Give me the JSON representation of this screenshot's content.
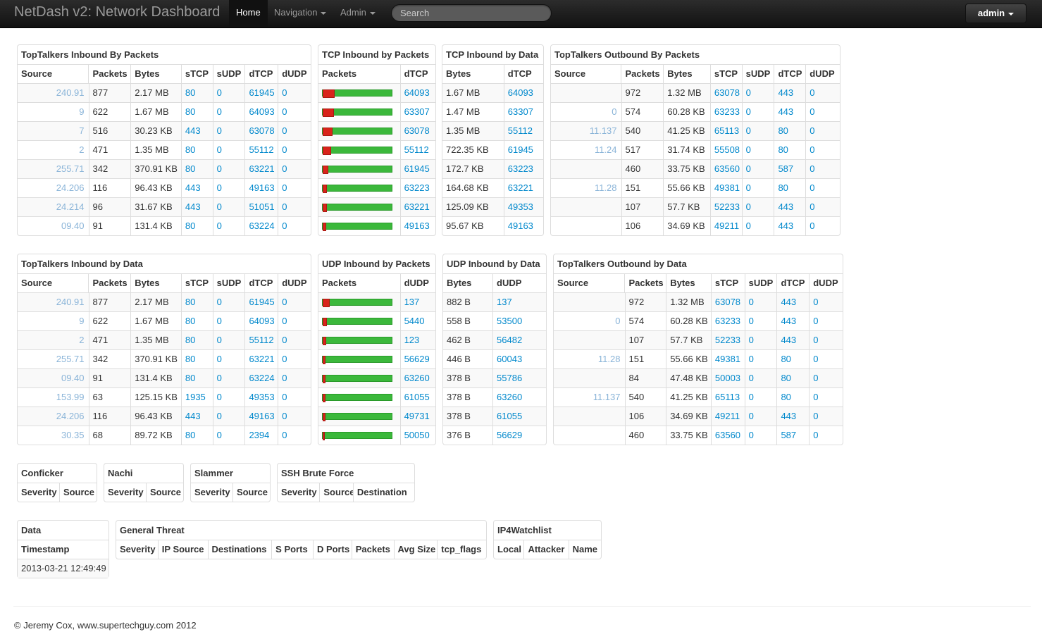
{
  "navbar": {
    "brand": "NetDash v2: Network Dashboard",
    "items": [
      "Home",
      "Navigation",
      "Admin"
    ],
    "search_placeholder": "Search",
    "user": "admin"
  },
  "panels": [
    {
      "title": "TopTalkers Inbound By Packets",
      "columns": [
        "Source",
        "Packets",
        "Bytes",
        "sTCP",
        "sUDP",
        "dTCP",
        "dUDP"
      ],
      "rows": [
        [
          "240.91",
          "877",
          "2.17 MB",
          "80",
          "0",
          "61945",
          "0"
        ],
        [
          "9",
          "622",
          "1.67 MB",
          "80",
          "0",
          "64093",
          "0"
        ],
        [
          "7",
          "516",
          "30.23 KB",
          "443",
          "0",
          "63078",
          "0"
        ],
        [
          "2",
          "471",
          "1.35 MB",
          "80",
          "0",
          "55112",
          "0"
        ],
        [
          "255.71",
          "342",
          "370.91 KB",
          "80",
          "0",
          "63221",
          "0"
        ],
        [
          "24.206",
          "116",
          "96.43 KB",
          "443",
          "0",
          "49163",
          "0"
        ],
        [
          "24.214",
          "96",
          "31.67 KB",
          "443",
          "0",
          "51051",
          "0"
        ],
        [
          "09.40",
          "91",
          "131.4 KB",
          "80",
          "0",
          "63224",
          "0"
        ]
      ]
    },
    {
      "title": "TCP Inbound by Packets",
      "columns": [
        "Packets",
        "dTCP"
      ],
      "rows": [
        [
          15,
          "64093"
        ],
        [
          14,
          "63307"
        ],
        [
          12,
          "63078"
        ],
        [
          10,
          "55112"
        ],
        [
          6,
          "61945"
        ],
        [
          4,
          "63223"
        ],
        [
          4,
          "63221"
        ],
        [
          3,
          "49163"
        ]
      ]
    },
    {
      "title": "TCP Inbound by Data",
      "columns": [
        "Bytes",
        "dTCP"
      ],
      "rows": [
        [
          "1.67 MB",
          "64093"
        ],
        [
          "1.47 MB",
          "63307"
        ],
        [
          "1.35 MB",
          "55112"
        ],
        [
          "722.35 KB",
          "61945"
        ],
        [
          "172.7 KB",
          "63223"
        ],
        [
          "164.68 KB",
          "63221"
        ],
        [
          "125.09 KB",
          "49353"
        ],
        [
          "95.67 KB",
          "49163"
        ]
      ]
    },
    {
      "title": "TopTalkers Outbound By Packets",
      "columns": [
        "Source",
        "Packets",
        "Bytes",
        "sTCP",
        "sUDP",
        "dTCP",
        "dUDP"
      ],
      "rows": [
        [
          null,
          "972",
          "1.32 MB",
          "63078",
          "0",
          "443",
          "0"
        ],
        [
          "0",
          "574",
          "60.28 KB",
          "63233",
          "0",
          "443",
          "0"
        ],
        [
          "11.137",
          "540",
          "41.25 KB",
          "65113",
          "0",
          "80",
          "0"
        ],
        [
          "11.24",
          "517",
          "31.74 KB",
          "55508",
          "0",
          "80",
          "0"
        ],
        [
          null,
          "460",
          "33.75 KB",
          "63560",
          "0",
          "587",
          "0"
        ],
        [
          "11.28",
          "151",
          "55.66 KB",
          "49381",
          "0",
          "80",
          "0"
        ],
        [
          null,
          "107",
          "57.7 KB",
          "52233",
          "0",
          "443",
          "0"
        ],
        [
          null,
          "106",
          "34.69 KB",
          "49211",
          "0",
          "443",
          "0"
        ]
      ]
    },
    {
      "title": "TopTalkers Inbound by Data",
      "columns": [
        "Source",
        "Packets",
        "Bytes",
        "sTCP",
        "sUDP",
        "dTCP",
        "dUDP"
      ],
      "rows": [
        [
          "240.91",
          "877",
          "2.17 MB",
          "80",
          "0",
          "61945",
          "0"
        ],
        [
          "9",
          "622",
          "1.67 MB",
          "80",
          "0",
          "64093",
          "0"
        ],
        [
          "2",
          "471",
          "1.35 MB",
          "80",
          "0",
          "55112",
          "0"
        ],
        [
          "255.71",
          "342",
          "370.91 KB",
          "80",
          "0",
          "63221",
          "0"
        ],
        [
          "09.40",
          "91",
          "131.4 KB",
          "80",
          "0",
          "63224",
          "0"
        ],
        [
          "153.99",
          "63",
          "125.15 KB",
          "1935",
          "0",
          "49353",
          "0"
        ],
        [
          "24.206",
          "116",
          "96.43 KB",
          "443",
          "0",
          "49163",
          "0"
        ],
        [
          "30.35",
          "68",
          "89.72 KB",
          "80",
          "0",
          "2394",
          "0"
        ]
      ]
    },
    {
      "title": "UDP Inbound by Packets",
      "columns": [
        "Packets",
        "dUDP"
      ],
      "rows": [
        [
          8,
          "137"
        ],
        [
          4,
          "5440"
        ],
        [
          3,
          "123"
        ],
        [
          2,
          "56629"
        ],
        [
          2,
          "63260"
        ],
        [
          2,
          "61055"
        ],
        [
          2,
          "49731"
        ],
        [
          1,
          "50050"
        ]
      ]
    },
    {
      "title": "UDP Inbound by Data",
      "columns": [
        "Bytes",
        "dUDP"
      ],
      "rows": [
        [
          "882 B",
          "137"
        ],
        [
          "558 B",
          "53500"
        ],
        [
          "462 B",
          "56482"
        ],
        [
          "446 B",
          "60043"
        ],
        [
          "378 B",
          "55786"
        ],
        [
          "378 B",
          "63260"
        ],
        [
          "378 B",
          "61055"
        ],
        [
          "376 B",
          "56629"
        ]
      ]
    },
    {
      "title": "TopTalkers Outbound by Data",
      "columns": [
        "Source",
        "Packets",
        "Bytes",
        "sTCP",
        "sUDP",
        "dTCP",
        "dUDP"
      ],
      "rows": [
        [
          null,
          "972",
          "1.32 MB",
          "63078",
          "0",
          "443",
          "0"
        ],
        [
          "0",
          "574",
          "60.28 KB",
          "63233",
          "0",
          "443",
          "0"
        ],
        [
          null,
          "107",
          "57.7 KB",
          "52233",
          "0",
          "443",
          "0"
        ],
        [
          "11.28",
          "151",
          "55.66 KB",
          "49381",
          "0",
          "80",
          "0"
        ],
        [
          null,
          "84",
          "47.48 KB",
          "50003",
          "0",
          "80",
          "0"
        ],
        [
          "11.137",
          "540",
          "41.25 KB",
          "65113",
          "0",
          "80",
          "0"
        ],
        [
          null,
          "106",
          "34.69 KB",
          "49211",
          "0",
          "443",
          "0"
        ],
        [
          null,
          "460",
          "33.75 KB",
          "63560",
          "0",
          "587",
          "0"
        ]
      ]
    },
    {
      "title": "Conficker",
      "columns": [
        "Severity",
        "Source"
      ],
      "rows": []
    },
    {
      "title": "Nachi",
      "columns": [
        "Severity",
        "Source"
      ],
      "rows": []
    },
    {
      "title": "Slammer",
      "columns": [
        "Severity",
        "Source"
      ],
      "rows": []
    },
    {
      "title": "SSH Brute Force",
      "columns": [
        "Severity",
        "Source",
        "Destination"
      ],
      "rows": []
    },
    {
      "title": "Data",
      "columns": [
        "Timestamp"
      ],
      "rows": [
        [
          "2013-03-21 12:49:49"
        ]
      ]
    },
    {
      "title": "General Threat",
      "columns": [
        "Severity",
        "IP Source",
        "Destinations",
        "S Ports",
        "D Ports",
        "Packets",
        "Avg Size",
        "tcp_flags"
      ],
      "rows": []
    },
    {
      "title": "IP4Watchlist",
      "columns": [
        "Local",
        "Attacker",
        "Name"
      ],
      "rows": []
    }
  ],
  "footer": "© Jeremy Cox, www.supertechguy.com 2012"
}
